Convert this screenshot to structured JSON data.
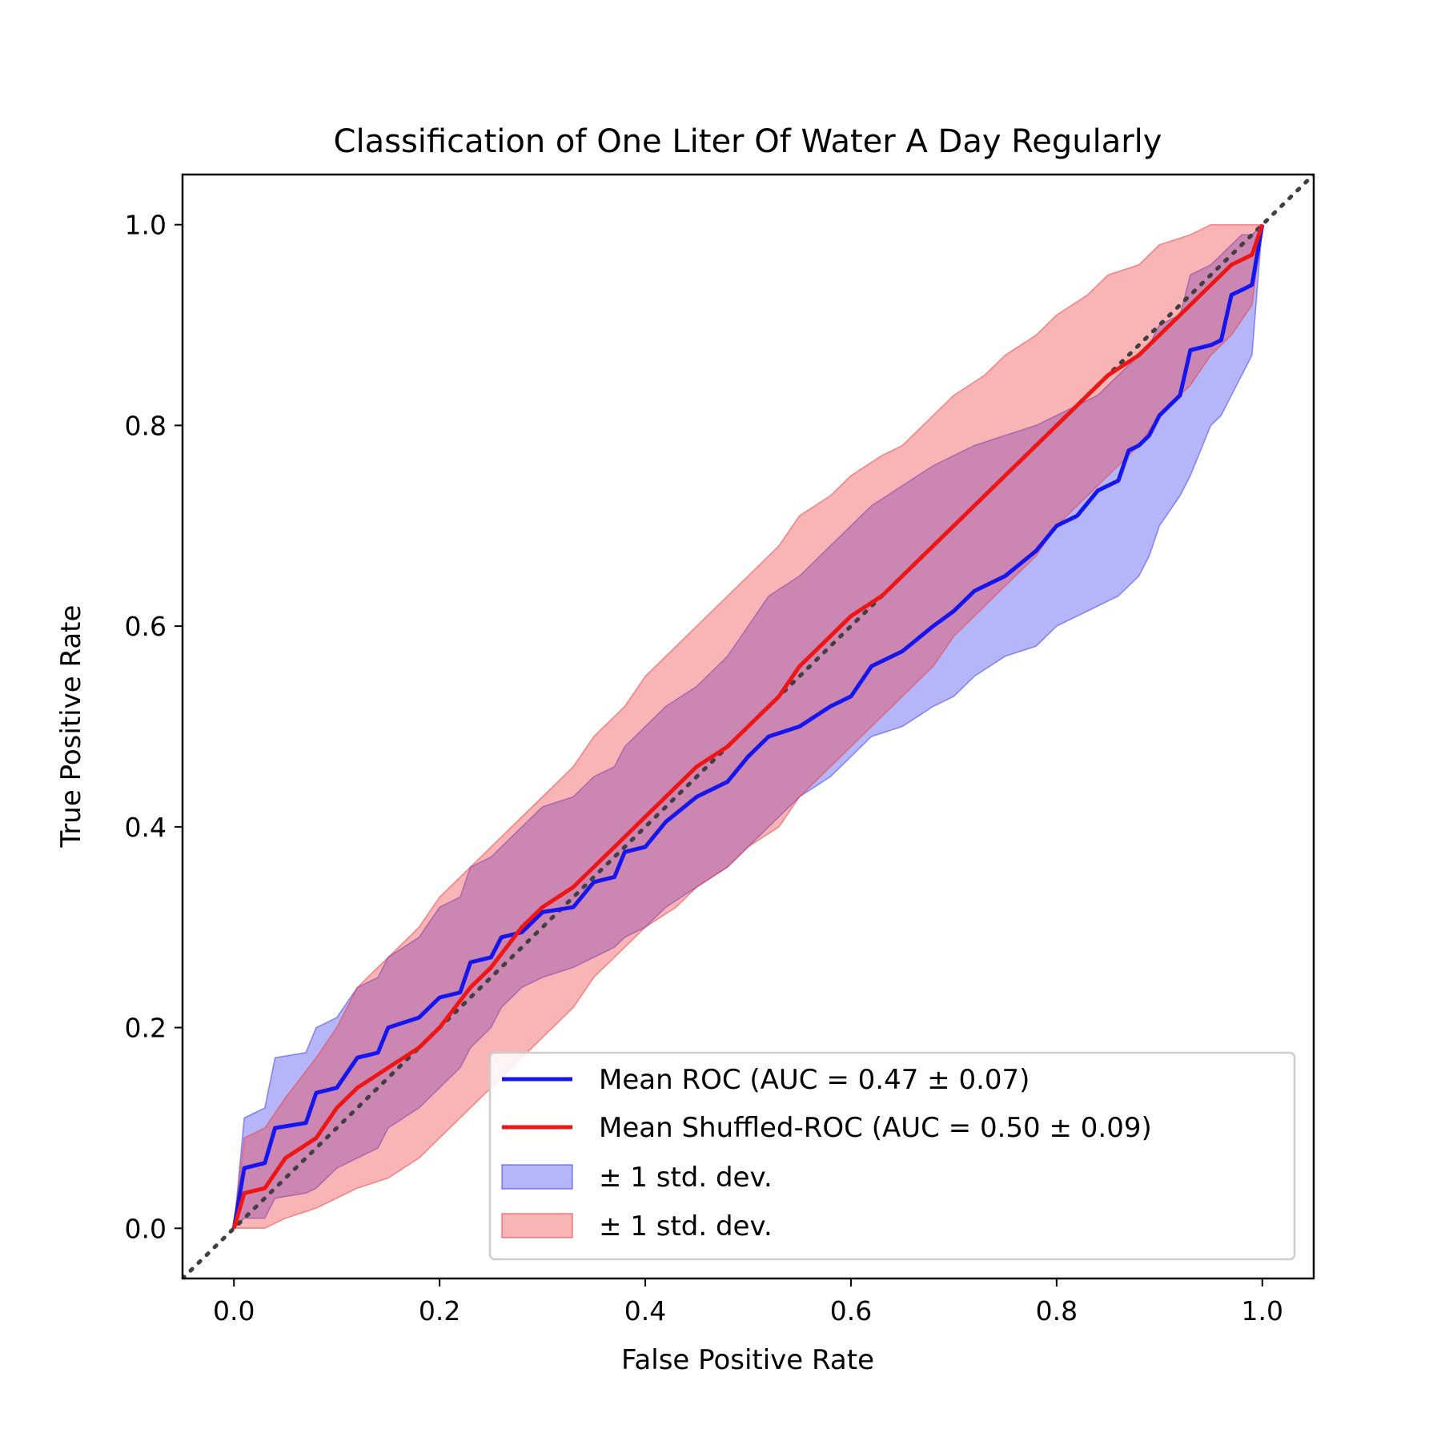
{
  "chart_data": {
    "type": "line",
    "title": "Classification of One Liter Of Water A Day Regularly",
    "xlabel": "False Positive Rate",
    "ylabel": "True Positive Rate",
    "xlim": [
      -0.05,
      1.05
    ],
    "ylim": [
      -0.05,
      1.05
    ],
    "xticks": [
      0.0,
      0.2,
      0.4,
      0.6,
      0.8,
      1.0
    ],
    "yticks": [
      0.0,
      0.2,
      0.4,
      0.6,
      0.8,
      1.0
    ],
    "xtick_labels": [
      "0.0",
      "0.2",
      "0.4",
      "0.6",
      "0.8",
      "1.0"
    ],
    "ytick_labels": [
      "0.0",
      "0.2",
      "0.4",
      "0.6",
      "0.8",
      "1.0"
    ],
    "grid": false,
    "legend_position": "bottom-right",
    "diagonal": {
      "x": [
        -0.05,
        1.05
      ],
      "y": [
        -0.05,
        1.05
      ],
      "color": "#404040",
      "style": "dotted"
    },
    "series": [
      {
        "name": "Mean ROC (AUC = 0.47 ± 0.07)",
        "color": "#1515ee",
        "x": [
          0.0,
          0.01,
          0.03,
          0.04,
          0.07,
          0.08,
          0.1,
          0.12,
          0.14,
          0.15,
          0.18,
          0.2,
          0.22,
          0.23,
          0.25,
          0.26,
          0.28,
          0.3,
          0.33,
          0.35,
          0.37,
          0.38,
          0.4,
          0.42,
          0.45,
          0.48,
          0.5,
          0.52,
          0.55,
          0.58,
          0.6,
          0.62,
          0.65,
          0.68,
          0.7,
          0.72,
          0.75,
          0.78,
          0.8,
          0.82,
          0.84,
          0.86,
          0.87,
          0.88,
          0.89,
          0.9,
          0.92,
          0.93,
          0.95,
          0.96,
          0.97,
          0.98,
          0.99,
          1.0
        ],
        "y": [
          0.0,
          0.06,
          0.065,
          0.1,
          0.105,
          0.135,
          0.14,
          0.17,
          0.175,
          0.2,
          0.21,
          0.23,
          0.235,
          0.265,
          0.27,
          0.29,
          0.295,
          0.315,
          0.32,
          0.345,
          0.35,
          0.375,
          0.38,
          0.405,
          0.43,
          0.445,
          0.47,
          0.49,
          0.5,
          0.52,
          0.53,
          0.56,
          0.575,
          0.6,
          0.615,
          0.635,
          0.65,
          0.675,
          0.7,
          0.71,
          0.735,
          0.745,
          0.775,
          0.78,
          0.79,
          0.81,
          0.83,
          0.875,
          0.88,
          0.885,
          0.93,
          0.935,
          0.94,
          1.0
        ],
        "std_band": {
          "name": "± 1 std. dev.",
          "color": "#3c3cee",
          "opacity": 0.38,
          "lower": [
            0.0,
            0.01,
            0.01,
            0.03,
            0.035,
            0.04,
            0.06,
            0.07,
            0.08,
            0.1,
            0.12,
            0.14,
            0.16,
            0.18,
            0.2,
            0.22,
            0.24,
            0.25,
            0.26,
            0.27,
            0.28,
            0.29,
            0.3,
            0.32,
            0.34,
            0.36,
            0.38,
            0.4,
            0.43,
            0.45,
            0.47,
            0.49,
            0.5,
            0.52,
            0.53,
            0.55,
            0.57,
            0.58,
            0.6,
            0.61,
            0.62,
            0.63,
            0.64,
            0.65,
            0.67,
            0.7,
            0.73,
            0.75,
            0.8,
            0.81,
            0.83,
            0.85,
            0.87,
            1.0
          ],
          "upper": [
            0.0,
            0.11,
            0.12,
            0.17,
            0.175,
            0.2,
            0.21,
            0.24,
            0.25,
            0.27,
            0.29,
            0.32,
            0.33,
            0.36,
            0.37,
            0.38,
            0.4,
            0.42,
            0.43,
            0.45,
            0.46,
            0.48,
            0.5,
            0.52,
            0.54,
            0.57,
            0.6,
            0.63,
            0.65,
            0.68,
            0.7,
            0.72,
            0.74,
            0.76,
            0.77,
            0.78,
            0.79,
            0.8,
            0.81,
            0.82,
            0.83,
            0.85,
            0.86,
            0.87,
            0.88,
            0.9,
            0.91,
            0.95,
            0.96,
            0.97,
            0.98,
            0.99,
            0.99,
            1.0
          ]
        }
      },
      {
        "name": "Mean Shuffled-ROC (AUC = 0.50 ± 0.09)",
        "color": "#ee1515",
        "x": [
          0.0,
          0.01,
          0.03,
          0.05,
          0.08,
          0.1,
          0.12,
          0.15,
          0.18,
          0.2,
          0.23,
          0.25,
          0.28,
          0.3,
          0.33,
          0.35,
          0.38,
          0.4,
          0.43,
          0.45,
          0.48,
          0.5,
          0.53,
          0.55,
          0.58,
          0.6,
          0.63,
          0.65,
          0.68,
          0.7,
          0.73,
          0.75,
          0.78,
          0.8,
          0.83,
          0.85,
          0.88,
          0.9,
          0.93,
          0.95,
          0.97,
          0.99,
          1.0
        ],
        "y": [
          0.0,
          0.035,
          0.04,
          0.07,
          0.09,
          0.12,
          0.14,
          0.16,
          0.18,
          0.2,
          0.24,
          0.26,
          0.3,
          0.32,
          0.34,
          0.36,
          0.39,
          0.41,
          0.44,
          0.46,
          0.48,
          0.5,
          0.53,
          0.56,
          0.59,
          0.61,
          0.63,
          0.65,
          0.68,
          0.7,
          0.73,
          0.75,
          0.78,
          0.8,
          0.83,
          0.85,
          0.87,
          0.89,
          0.92,
          0.94,
          0.96,
          0.97,
          1.0
        ],
        "std_band": {
          "name": "± 1 std. dev.",
          "color": "#ee3c3c",
          "opacity": 0.38,
          "lower": [
            0.0,
            0.0,
            0.0,
            0.01,
            0.02,
            0.03,
            0.04,
            0.05,
            0.07,
            0.09,
            0.12,
            0.14,
            0.17,
            0.19,
            0.22,
            0.25,
            0.28,
            0.3,
            0.32,
            0.34,
            0.36,
            0.38,
            0.4,
            0.43,
            0.46,
            0.48,
            0.51,
            0.53,
            0.56,
            0.59,
            0.62,
            0.64,
            0.67,
            0.7,
            0.73,
            0.75,
            0.78,
            0.81,
            0.84,
            0.87,
            0.89,
            0.92,
            1.0
          ],
          "upper": [
            0.0,
            0.09,
            0.1,
            0.13,
            0.17,
            0.2,
            0.24,
            0.27,
            0.3,
            0.33,
            0.36,
            0.38,
            0.41,
            0.43,
            0.46,
            0.49,
            0.52,
            0.55,
            0.58,
            0.6,
            0.63,
            0.65,
            0.68,
            0.71,
            0.73,
            0.75,
            0.77,
            0.78,
            0.81,
            0.83,
            0.85,
            0.87,
            0.89,
            0.91,
            0.93,
            0.95,
            0.96,
            0.98,
            0.99,
            1.0,
            1.0,
            1.0,
            1.0
          ]
        }
      }
    ],
    "legend": [
      {
        "kind": "line",
        "label": "Mean ROC (AUC = 0.47 ± 0.07)",
        "color": "#1515ee"
      },
      {
        "kind": "line",
        "label": "Mean Shuffled-ROC (AUC = 0.50 ± 0.09)",
        "color": "#ee1515"
      },
      {
        "kind": "patch",
        "label": "± 1 std. dev.",
        "color": "#3c3cee"
      },
      {
        "kind": "patch",
        "label": "± 1 std. dev.",
        "color": "#ee3c3c"
      }
    ]
  }
}
